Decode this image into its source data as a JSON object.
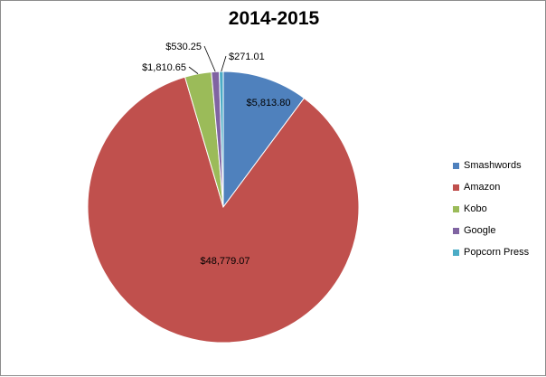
{
  "chart_data": {
    "type": "pie",
    "title": "2014-2015",
    "slices": [
      {
        "name": "Smashwords",
        "value": 5813.8,
        "label": "$5,813.80",
        "color": "#4f81bd"
      },
      {
        "name": "Amazon",
        "value": 48779.07,
        "label": "$48,779.07",
        "color": "#c0504d"
      },
      {
        "name": "Kobo",
        "value": 1810.65,
        "label": "$1,810.65",
        "color": "#9bbb59"
      },
      {
        "name": "Google",
        "value": 530.25,
        "label": "$530.25",
        "color": "#8064a2"
      },
      {
        "name": "Popcorn Press",
        "value": 271.01,
        "label": "$271.01",
        "color": "#4bacc6"
      }
    ],
    "legend_position": "right"
  }
}
